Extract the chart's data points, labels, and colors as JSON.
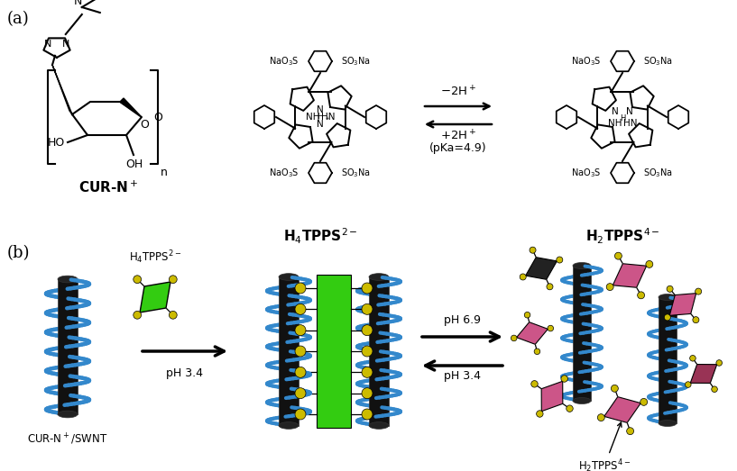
{
  "fig_width": 8.17,
  "fig_height": 5.23,
  "dpi": 100,
  "background": "#ffffff",
  "label_a": "(a)",
  "label_b": "(b)",
  "label_fontsize": 13,
  "cur_label": "CUR-N$^+$",
  "h4tpps_label": "H$_4$TPPS$^{2-}$",
  "h2tpps_label": "H$_2$TPPS$^{4-}$",
  "arrow_text_top": "$-$2H$^+$",
  "arrow_text_bottom": "+2H$^+$",
  "arrow_text_pka": "(pKa=4.9)",
  "swnt_label": "CUR-N$^+$/SWNT",
  "h4tpps_b_label": "H$_4$TPPS$^{2-}$",
  "h2tpps_b_label": "H$_2$TPPS$^{4-}$",
  "ph34_label": "pH 3.4",
  "ph69_label": "pH 6.9",
  "ph34b_label": "pH 3.4",
  "helix_color": "#3388cc",
  "tube_color": "#111111",
  "green_color": "#33cc11",
  "pink_color": "#cc5588",
  "yellow_color": "#ccbb00",
  "black_sq_color": "#222222",
  "dark_pink_color": "#993355"
}
